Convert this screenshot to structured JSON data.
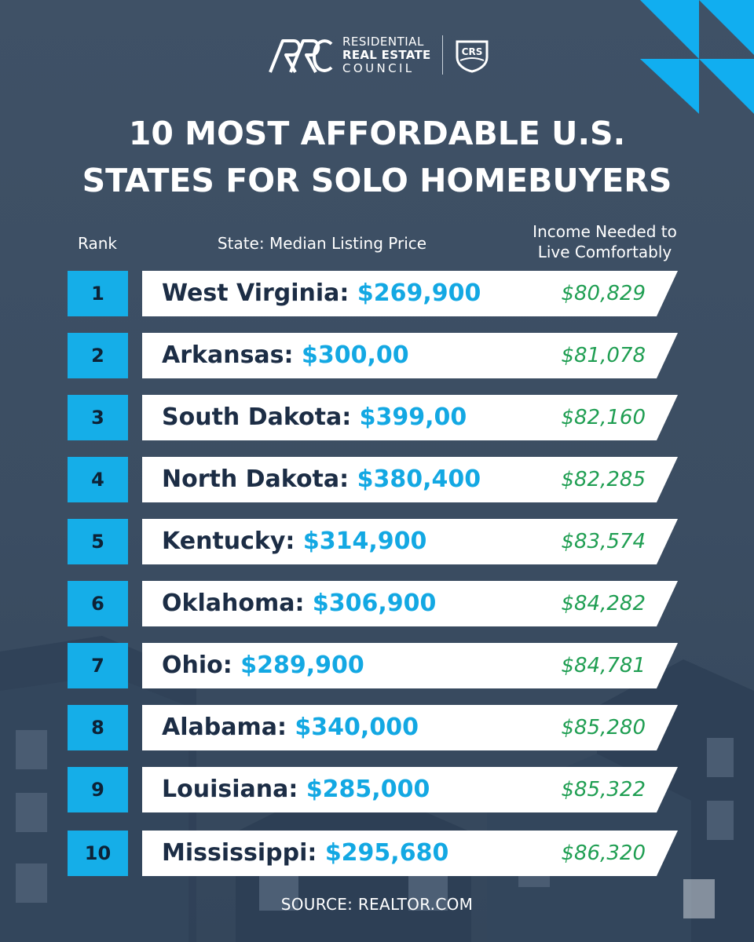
{
  "brand": {
    "line1": "RESIDENTIAL",
    "line2": "REAL ESTATE",
    "line3": "COUNCIL",
    "badge": "CRS",
    "colors": {
      "accent": "#15aee8",
      "background": "#3c4e63",
      "income": "#1f9e52",
      "text_dark": "#1c2d45"
    }
  },
  "title": {
    "line1": "10 MOST AFFORDABLE U.S.",
    "line2": "STATES FOR SOLO HOMEBUYERS"
  },
  "columns": {
    "rank": "Rank",
    "state": "State: Median Listing Price",
    "income_line1": "Income Needed to",
    "income_line2": "Live Comfortably"
  },
  "rows": [
    {
      "rank": "1",
      "state": "West Virginia:",
      "price": "$269,900",
      "income": "$80,829"
    },
    {
      "rank": "2",
      "state": "Arkansas:",
      "price": "$300,00",
      "income": "$81,078"
    },
    {
      "rank": "3",
      "state": "South Dakota:",
      "price": "$399,00",
      "income": "$82,160"
    },
    {
      "rank": "4",
      "state": "North Dakota:",
      "price": "$380,400",
      "income": "$82,285"
    },
    {
      "rank": "5",
      "state": "Kentucky:",
      "price": "$314,900",
      "income": "$83,574"
    },
    {
      "rank": "6",
      "state": "Oklahoma:",
      "price": "$306,900",
      "income": "$84,282"
    },
    {
      "rank": "7",
      "state": "Ohio:",
      "price": "$289,900",
      "income": "$84,781"
    },
    {
      "rank": "8",
      "state": "Alabama:",
      "price": "$340,000",
      "income": "$85,280"
    },
    {
      "rank": "9",
      "state": "Louisiana:",
      "price": "$285,000",
      "income": "$85,322"
    },
    {
      "rank": "10",
      "state": "Mississippi:",
      "price": "$295,680",
      "income": "$86,320"
    }
  ],
  "source": "SOURCE: REALTOR.COM"
}
